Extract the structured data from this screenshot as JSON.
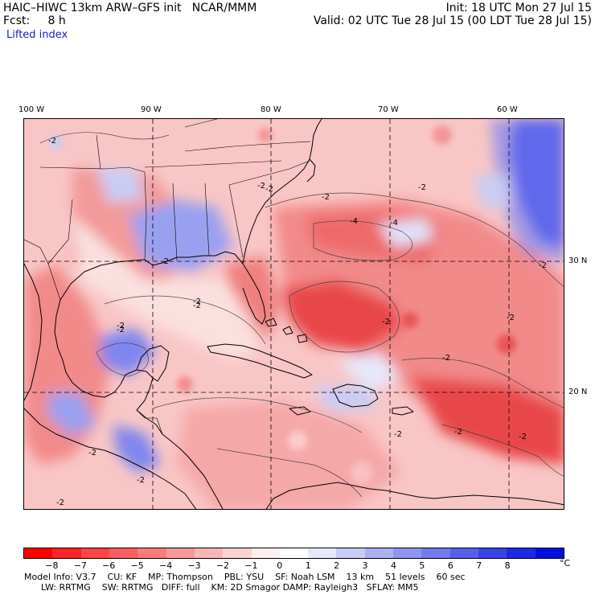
{
  "header": {
    "model_title": "HAIC–HIWC 13km ARW–GFS init   NCAR/MMM",
    "init_label": "Init: 18 UTC Mon 27 Jul 15",
    "fcst_label": "Fcst:     8 h",
    "valid_label": "Valid: 02 UTC Tue 28 Jul 15 (00 LDT Tue 28 Jul 15)",
    "field_label": "Lifted index"
  },
  "map": {
    "lon_labels": [
      "100 W",
      "90 W",
      "80 W",
      "70 W",
      "60 W"
    ],
    "lat_labels": [
      "30 N",
      "20 N"
    ],
    "contour_labels": [
      "-2",
      "-2",
      "-2",
      "-2",
      "-2",
      "-2",
      "-2",
      "-2",
      "-4",
      "-4",
      "-2",
      "-2",
      "-2",
      "-2",
      "-2",
      "-2",
      "-2",
      "-2",
      "-2",
      "-2",
      "-2",
      "-2"
    ],
    "colors": {
      "neg_strong": "#e8464a",
      "neg_mid": "#f28a8a",
      "neg_light": "#f9c6c6",
      "neutral": "#ffffff",
      "pos_light": "#c9ccf5",
      "pos_mid": "#7f86ee",
      "pos_strong": "#1a22e6",
      "coast": "#000000",
      "grid": "#000000"
    }
  },
  "colorbar": {
    "labels": [
      "−8",
      "−7",
      "−6",
      "−5",
      "−4",
      "−3",
      "−2",
      "−1",
      "0",
      "1",
      "2",
      "3",
      "4",
      "5",
      "6",
      "7",
      "8"
    ],
    "unit": "°C",
    "colors": [
      "#ff0000",
      "#ff2222",
      "#ff4444",
      "#fb6060",
      "#f87c7c",
      "#f79999",
      "#f8b6b6",
      "#f9d2d2",
      "#fdeeee",
      "#ffffff",
      "#e6e8fb",
      "#c9ccf5",
      "#acb0f1",
      "#8f95ee",
      "#737aeb",
      "#565fe8",
      "#3a44e6",
      "#1d28e3",
      "#0010e0"
    ]
  },
  "footer": {
    "line1": "Model Info: V3.7    CU: KF    MP: Thompson    PBL: YSU    SF: Noah LSM    13 km    51 levels    60 sec",
    "line2": "      LW: RRTMG    SW: RRTMG   DIFF: full    KM: 2D Smagor DAMP: Rayleigh3   SFLAY: MM5"
  }
}
